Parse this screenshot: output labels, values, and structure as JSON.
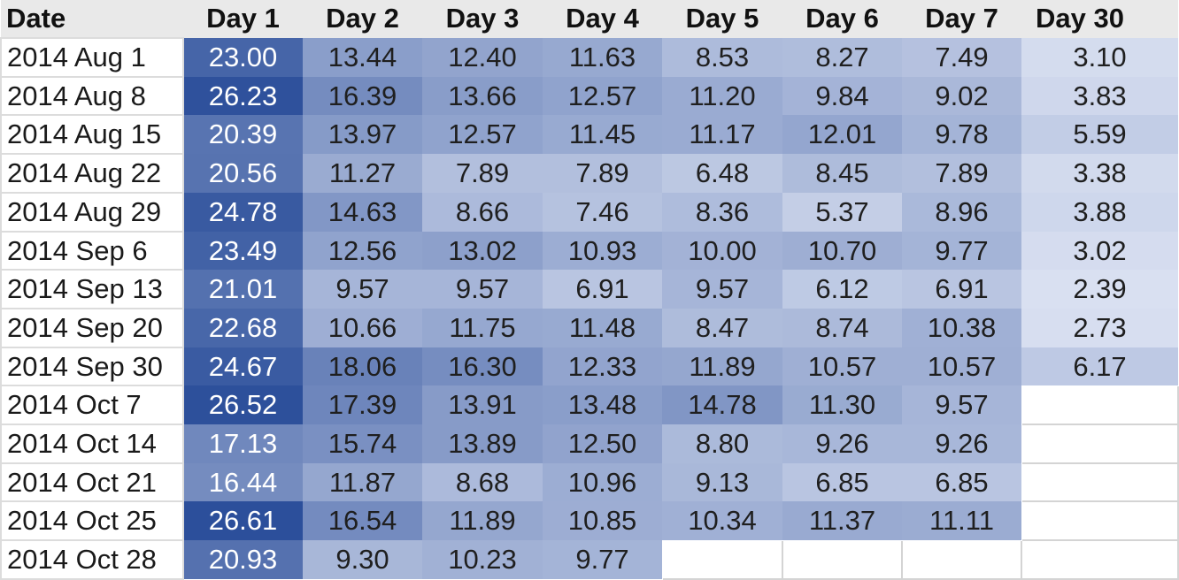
{
  "chart_data": {
    "type": "heatmap",
    "columns": [
      "Date",
      "Day 1",
      "Day 2",
      "Day 3",
      "Day 4",
      "Day 5",
      "Day 6",
      "Day 7",
      "Day 30"
    ],
    "rows": [
      {
        "date": "2014 Aug 1",
        "values": [
          "23.00",
          "13.44",
          "12.40",
          "11.63",
          "8.53",
          "8.27",
          "7.49",
          "3.10"
        ]
      },
      {
        "date": "2014 Aug 8",
        "values": [
          "26.23",
          "16.39",
          "13.66",
          "12.57",
          "11.20",
          "9.84",
          "9.02",
          "3.83"
        ]
      },
      {
        "date": "2014 Aug 15",
        "values": [
          "20.39",
          "13.97",
          "12.57",
          "11.45",
          "11.17",
          "12.01",
          "9.78",
          "5.59"
        ]
      },
      {
        "date": "2014 Aug 22",
        "values": [
          "20.56",
          "11.27",
          "7.89",
          "7.89",
          "6.48",
          "8.45",
          "7.89",
          "3.38"
        ]
      },
      {
        "date": "2014 Aug 29",
        "values": [
          "24.78",
          "14.63",
          "8.66",
          "7.46",
          "8.36",
          "5.37",
          "8.96",
          "3.88"
        ]
      },
      {
        "date": "2014 Sep 6",
        "values": [
          "23.49",
          "12.56",
          "13.02",
          "10.93",
          "10.00",
          "10.70",
          "9.77",
          "3.02"
        ]
      },
      {
        "date": "2014 Sep 13",
        "values": [
          "21.01",
          "9.57",
          "9.57",
          "6.91",
          "9.57",
          "6.12",
          "6.91",
          "2.39"
        ]
      },
      {
        "date": "2014 Sep 20",
        "values": [
          "22.68",
          "10.66",
          "11.75",
          "11.48",
          "8.47",
          "8.74",
          "10.38",
          "2.73"
        ]
      },
      {
        "date": "2014 Sep 30",
        "values": [
          "24.67",
          "18.06",
          "16.30",
          "12.33",
          "11.89",
          "10.57",
          "10.57",
          "6.17"
        ]
      },
      {
        "date": "2014 Oct 7",
        "values": [
          "26.52",
          "17.39",
          "13.91",
          "13.48",
          "14.78",
          "11.30",
          "9.57",
          null
        ]
      },
      {
        "date": "2014 Oct 14",
        "values": [
          "17.13",
          "15.74",
          "13.89",
          "12.50",
          "8.80",
          "9.26",
          "9.26",
          null
        ]
      },
      {
        "date": "2014 Oct 21",
        "values": [
          "16.44",
          "11.87",
          "8.68",
          "10.96",
          "9.13",
          "6.85",
          "6.85",
          null
        ]
      },
      {
        "date": "2014 Oct 25",
        "values": [
          "26.61",
          "16.54",
          "11.89",
          "10.85",
          "10.34",
          "11.37",
          "11.11",
          null
        ]
      },
      {
        "date": "2014 Oct 28",
        "values": [
          "20.93",
          "9.30",
          "10.23",
          "9.77",
          null,
          null,
          null,
          null
        ]
      }
    ],
    "color_scale": {
      "low": "#d9e0f1",
      "high": "#2c4f9b",
      "value_range": [
        2.39,
        26.61
      ]
    }
  }
}
